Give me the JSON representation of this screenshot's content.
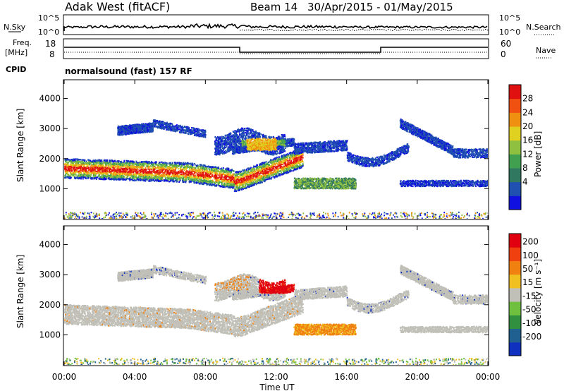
{
  "header": {
    "station": "Adak West (fitACF)",
    "beam": "Beam 14",
    "dates": "30/Apr/2015 - 01/May/2015"
  },
  "panels": {
    "nsky_label": "N.Sky",
    "nsearch_label": "N.Search",
    "nsky_ticks": [
      "10^5",
      "10^0"
    ],
    "freq_label_1": "Freq.",
    "freq_label_2": "[MHz]",
    "freq_ticks": [
      "18",
      "8"
    ],
    "nave_label": "Nave",
    "nave_ticks": [
      "60",
      "0"
    ],
    "cpid_label": "CPID",
    "cpid_text": "normalsound (fast) 157 RF"
  },
  "chart_data": [
    {
      "type": "heatmap",
      "name": "power",
      "ylabel": "Slant Range [km]",
      "yticks": [
        "4000",
        "3000",
        "2000",
        "1000"
      ],
      "colorbar": {
        "label": "Power [dB]",
        "ticks": [
          "28",
          "24",
          "20",
          "16",
          "12",
          "8",
          "4"
        ],
        "colors": [
          "#1010e0",
          "#2050b0",
          "#307860",
          "#40a050",
          "#90c040",
          "#e0d020",
          "#f09010",
          "#f05010",
          "#e01010"
        ]
      }
    },
    {
      "type": "heatmap",
      "name": "velocity",
      "ylabel": "Slant Range [km]",
      "yticks": [
        "4000",
        "3000",
        "2000",
        "1000"
      ],
      "colorbar": {
        "label": "Velocity [m s⁻¹]",
        "ticks": [
          "200",
          "100",
          "50",
          "15",
          "-15",
          "-50",
          "-100",
          "-200"
        ],
        "colors": [
          "#1030c0",
          "#206090",
          "#309040",
          "#70c040",
          "#c0c0b8",
          "#f0c020",
          "#f08010",
          "#f04010",
          "#e00010"
        ]
      }
    }
  ],
  "xaxis": {
    "ticks": [
      "00:00",
      "04:00",
      "08:00",
      "12:00",
      "16:00",
      "20:00",
      "00:00"
    ],
    "label": "Time UT"
  }
}
